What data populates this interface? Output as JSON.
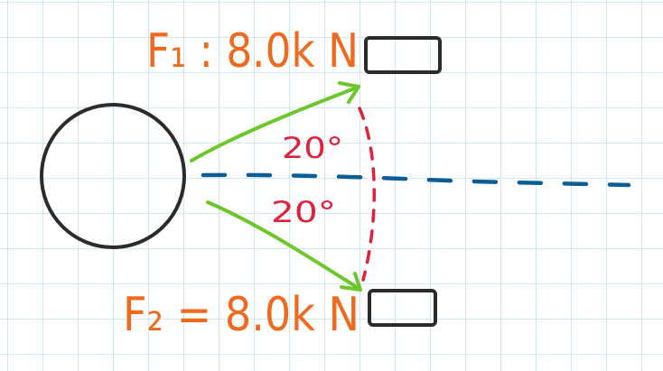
{
  "labels": {
    "force_1": "F₁ : 8.0k N",
    "force_2": "F₂ = 8.0k N",
    "angle_upper": "20°",
    "angle_lower": "20°"
  },
  "colors": {
    "grid": "#bfe3f5",
    "force_label": "#f06a1e",
    "arrow": "#6cc72a",
    "angle": "#e0203c",
    "centerline": "#0b5d96",
    "ink": "#2b2b2b"
  },
  "icons": {
    "ball": "circle-outline",
    "boxes": "rectangle-outline"
  }
}
